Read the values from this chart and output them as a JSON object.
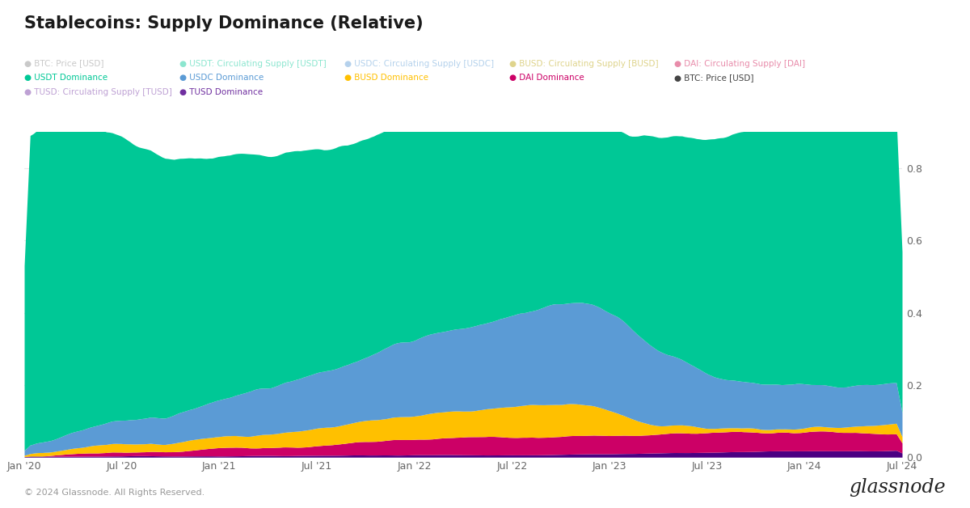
{
  "title": "Stablecoins: Supply Dominance (Relative)",
  "background_color": "#ffffff",
  "plot_bg_color": "#ffffff",
  "ylim": [
    0,
    0.9
  ],
  "yticks": [
    0,
    0.2,
    0.4,
    0.6,
    0.8
  ],
  "date_labels": [
    "Jan '20",
    "Jul '20",
    "Jan '21",
    "Jul '21",
    "Jan '22",
    "Jul '22",
    "Jan '23",
    "Jul '23",
    "Jan '24",
    "Jul '24"
  ],
  "colors": {
    "USDT": "#00c896",
    "USDC": "#5b9bd5",
    "BUSD": "#ffc000",
    "DAI": "#cc0066",
    "TUSD": "#4b0082"
  },
  "copyright": "© 2024 Glassnode. All Rights Reserved."
}
